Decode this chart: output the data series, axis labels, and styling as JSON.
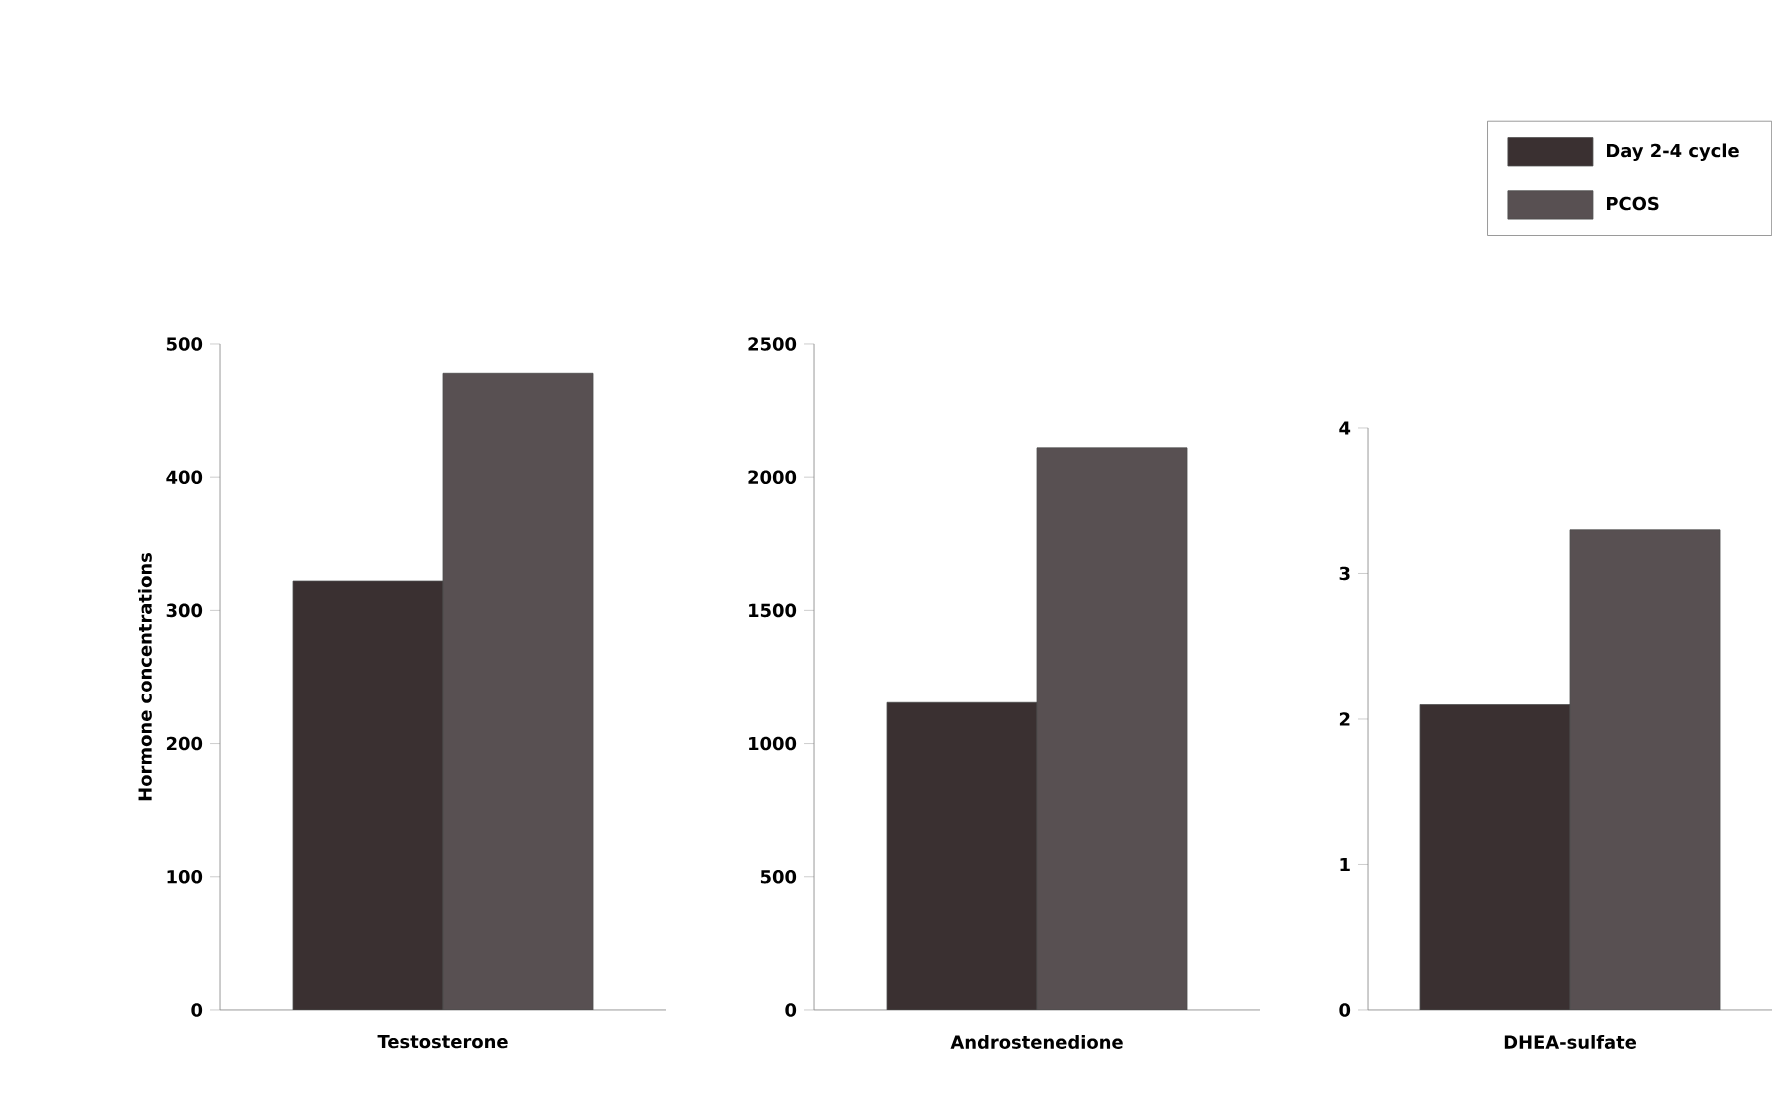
{
  "chart_data": [
    {
      "type": "bar",
      "ylabel": "Hormone concentrations",
      "categories": [
        "Testosterone"
      ],
      "series": [
        {
          "color": "#3a3031",
          "values": [
            322
          ]
        },
        {
          "color": "#585052",
          "values": [
            478
          ]
        }
      ],
      "ylim": [
        0,
        500
      ],
      "yticks": [
        0,
        100,
        200,
        300,
        400,
        500
      ],
      "legend": false
    },
    {
      "type": "bar",
      "categories": [
        "Androstenedione"
      ],
      "series": [
        {
          "color": "#3a3031",
          "values": [
            1155
          ]
        },
        {
          "color": "#585052",
          "values": [
            2110
          ]
        }
      ],
      "ylim": [
        0,
        2500
      ],
      "yticks": [
        0,
        500,
        1000,
        1500,
        2000,
        2500
      ],
      "legend": false
    },
    {
      "type": "bar",
      "categories": [
        "DHEA-sulfate"
      ],
      "series": [
        {
          "name": "Day 2-4 cycle",
          "color": "#3a3031",
          "values": [
            2.1
          ]
        },
        {
          "name": "PCOS",
          "color": "#585052",
          "values": [
            3.3
          ]
        }
      ],
      "ylim": [
        0,
        4
      ],
      "yticks": [
        0,
        1,
        2,
        3,
        4
      ],
      "legend": "top right"
    }
  ]
}
